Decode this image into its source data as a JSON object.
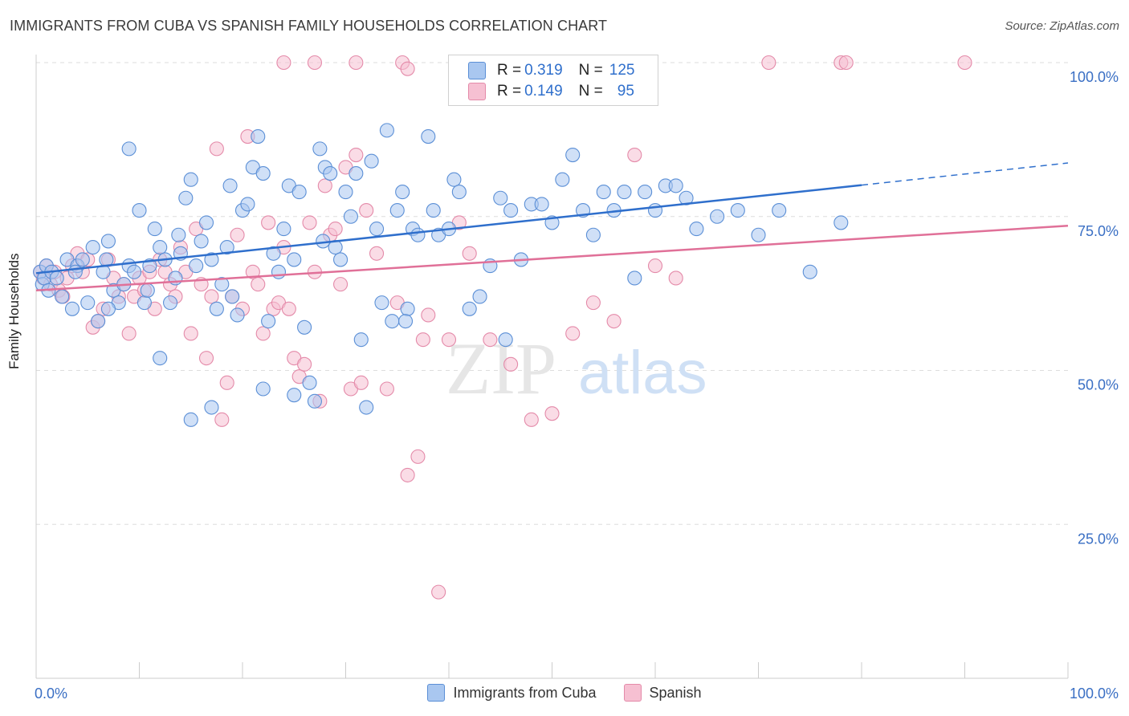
{
  "title": "IMMIGRANTS FROM CUBA VS SPANISH FAMILY HOUSEHOLDS CORRELATION CHART",
  "source": "Source: ZipAtlas.com",
  "watermark": {
    "part1": "ZIP",
    "part2": "atlas"
  },
  "colors": {
    "blue_fill": "#a9c7f0",
    "blue_stroke": "#5b8fd6",
    "blue_line": "#2f6fcc",
    "pink_fill": "#f6c0d2",
    "pink_stroke": "#e48aa9",
    "pink_line": "#e07098",
    "axis_label": "#3a6fc4",
    "grid": "#dddddd"
  },
  "stats_legend": [
    {
      "r_label": "R = ",
      "r_value": "0.319",
      "n_label": "N = ",
      "n_value": "125"
    },
    {
      "r_label": "R = ",
      "r_value": "0.149",
      "n_label": "N = ",
      "n_value": "95"
    }
  ],
  "bottom_legend": [
    "Immigrants from Cuba",
    "Spanish"
  ],
  "chart_data": {
    "type": "scatter",
    "title": "IMMIGRANTS FROM CUBA VS SPANISH FAMILY HOUSEHOLDS CORRELATION CHART",
    "xlabel": "",
    "ylabel": "Family Households",
    "xlim": [
      0,
      100
    ],
    "ylim": [
      0,
      100
    ],
    "x_tick_labels": [
      "0.0%",
      "100.0%"
    ],
    "y_tick_labels": [
      {
        "value": 25,
        "label": "25.0%"
      },
      {
        "value": 50,
        "label": "50.0%"
      },
      {
        "value": 75,
        "label": "75.0%"
      },
      {
        "value": 100,
        "label": "100.0%"
      }
    ],
    "series": [
      {
        "name": "Immigrants from Cuba",
        "R": 0.319,
        "N": 125,
        "trend": {
          "x0": 0,
          "y0": 65.8,
          "x1": 80,
          "y1": 80.1,
          "dash_to_x": 100,
          "dash_to_y": 83.7
        },
        "points": [
          [
            0.4,
            66
          ],
          [
            0.6,
            64
          ],
          [
            0.8,
            65
          ],
          [
            1,
            67
          ],
          [
            1.2,
            63
          ],
          [
            1.5,
            66
          ],
          [
            2,
            65
          ],
          [
            2.5,
            62
          ],
          [
            3,
            68
          ],
          [
            3.5,
            60
          ],
          [
            4,
            67
          ],
          [
            4.5,
            68
          ],
          [
            5,
            61
          ],
          [
            5.5,
            70
          ],
          [
            6,
            58
          ],
          [
            6.5,
            66
          ],
          [
            7,
            71
          ],
          [
            7.5,
            63
          ],
          [
            8,
            61
          ],
          [
            8.5,
            64
          ],
          [
            9,
            67
          ],
          [
            9.5,
            66
          ],
          [
            10,
            76
          ],
          [
            10.5,
            61
          ],
          [
            11,
            67
          ],
          [
            11.5,
            73
          ],
          [
            12,
            70
          ],
          [
            12.5,
            68
          ],
          [
            13,
            61
          ],
          [
            13.5,
            65
          ],
          [
            14,
            69
          ],
          [
            14.5,
            78
          ],
          [
            15,
            81
          ],
          [
            15.5,
            67
          ],
          [
            16,
            71
          ],
          [
            16.5,
            74
          ],
          [
            17,
            68
          ],
          [
            17.5,
            60
          ],
          [
            18,
            64
          ],
          [
            18.5,
            70
          ],
          [
            19,
            62
          ],
          [
            19.5,
            59
          ],
          [
            20,
            76
          ],
          [
            20.5,
            77
          ],
          [
            21,
            83
          ],
          [
            21.5,
            88
          ],
          [
            22,
            82
          ],
          [
            22.5,
            58
          ],
          [
            23,
            69
          ],
          [
            23.5,
            66
          ],
          [
            24,
            73
          ],
          [
            24.5,
            80
          ],
          [
            25,
            68
          ],
          [
            25.5,
            79
          ],
          [
            26,
            57
          ],
          [
            26.5,
            48
          ],
          [
            27,
            45
          ],
          [
            27.5,
            86
          ],
          [
            28,
            83
          ],
          [
            28.5,
            82
          ],
          [
            29,
            70
          ],
          [
            29.5,
            68
          ],
          [
            30,
            79
          ],
          [
            30.5,
            75
          ],
          [
            31,
            82
          ],
          [
            31.5,
            55
          ],
          [
            32,
            44
          ],
          [
            32.5,
            84
          ],
          [
            33,
            73
          ],
          [
            33.5,
            61
          ],
          [
            34,
            89
          ],
          [
            34.5,
            58
          ],
          [
            35,
            76
          ],
          [
            35.5,
            79
          ],
          [
            36,
            60
          ],
          [
            36.5,
            73
          ],
          [
            37,
            72
          ],
          [
            38,
            88
          ],
          [
            38.5,
            76
          ],
          [
            39,
            72
          ],
          [
            40,
            73
          ],
          [
            40.5,
            81
          ],
          [
            41,
            79
          ],
          [
            42,
            60
          ],
          [
            43,
            62
          ],
          [
            44,
            67
          ],
          [
            45,
            78
          ],
          [
            45.5,
            55
          ],
          [
            46,
            76
          ],
          [
            47,
            68
          ],
          [
            48,
            77
          ],
          [
            49,
            77
          ],
          [
            50,
            74
          ],
          [
            51,
            81
          ],
          [
            52,
            85
          ],
          [
            53,
            76
          ],
          [
            54,
            72
          ],
          [
            55,
            79
          ],
          [
            56,
            76
          ],
          [
            57,
            79
          ],
          [
            58,
            65
          ],
          [
            59,
            79
          ],
          [
            60,
            76
          ],
          [
            61,
            80
          ],
          [
            62,
            80
          ],
          [
            63,
            78
          ],
          [
            64,
            73
          ],
          [
            66,
            75
          ],
          [
            68,
            76
          ],
          [
            70,
            72
          ],
          [
            72,
            76
          ],
          [
            75,
            66
          ],
          [
            78,
            74
          ],
          [
            9,
            86
          ],
          [
            7,
            60
          ],
          [
            12,
            52
          ],
          [
            15,
            42
          ],
          [
            17,
            44
          ],
          [
            22,
            47
          ],
          [
            25,
            46
          ],
          [
            3.8,
            66
          ],
          [
            6.8,
            68
          ],
          [
            10.8,
            63
          ],
          [
            13.8,
            72
          ],
          [
            18.8,
            80
          ],
          [
            27.8,
            71
          ],
          [
            35.8,
            58
          ]
        ]
      },
      {
        "name": "Spanish",
        "R": 0.149,
        "N": 95,
        "trend": {
          "x0": 0,
          "y0": 63.0,
          "x1": 100,
          "y1": 73.5
        },
        "points": [
          [
            0.4,
            66
          ],
          [
            0.7,
            65
          ],
          [
            1,
            67
          ],
          [
            1.4,
            64
          ],
          [
            1.8,
            66
          ],
          [
            2.2,
            63
          ],
          [
            2.6,
            62
          ],
          [
            3,
            65
          ],
          [
            3.5,
            67
          ],
          [
            4,
            69
          ],
          [
            4.5,
            66
          ],
          [
            5,
            68
          ],
          [
            5.5,
            57
          ],
          [
            6,
            58
          ],
          [
            6.5,
            60
          ],
          [
            7,
            68
          ],
          [
            7.5,
            65
          ],
          [
            8,
            62
          ],
          [
            8.5,
            64
          ],
          [
            9,
            56
          ],
          [
            9.5,
            62
          ],
          [
            10,
            65
          ],
          [
            10.5,
            63
          ],
          [
            11,
            66
          ],
          [
            11.5,
            60
          ],
          [
            12,
            68
          ],
          [
            12.5,
            66
          ],
          [
            13,
            64
          ],
          [
            13.5,
            62
          ],
          [
            14,
            70
          ],
          [
            14.5,
            66
          ],
          [
            15,
            56
          ],
          [
            15.5,
            73
          ],
          [
            16,
            64
          ],
          [
            16.5,
            52
          ],
          [
            17,
            62
          ],
          [
            17.5,
            86
          ],
          [
            18,
            42
          ],
          [
            18.5,
            48
          ],
          [
            19,
            62
          ],
          [
            19.5,
            72
          ],
          [
            20,
            60
          ],
          [
            20.5,
            88
          ],
          [
            21,
            66
          ],
          [
            21.5,
            64
          ],
          [
            22,
            56
          ],
          [
            22.5,
            74
          ],
          [
            23,
            60
          ],
          [
            23.5,
            61
          ],
          [
            24,
            70
          ],
          [
            24.5,
            60
          ],
          [
            25,
            52
          ],
          [
            25.5,
            49
          ],
          [
            26,
            51
          ],
          [
            26.5,
            74
          ],
          [
            27,
            66
          ],
          [
            27.5,
            45
          ],
          [
            28,
            80
          ],
          [
            28.5,
            72
          ],
          [
            29,
            73
          ],
          [
            29.5,
            64
          ],
          [
            30,
            83
          ],
          [
            30.5,
            47
          ],
          [
            31,
            85
          ],
          [
            31.5,
            48
          ],
          [
            32,
            76
          ],
          [
            33,
            69
          ],
          [
            34,
            47
          ],
          [
            35,
            61
          ],
          [
            36,
            33
          ],
          [
            37,
            36
          ],
          [
            37.5,
            55
          ],
          [
            38,
            59
          ],
          [
            39,
            14
          ],
          [
            40,
            55
          ],
          [
            41,
            74
          ],
          [
            42,
            69
          ],
          [
            44,
            55
          ],
          [
            46,
            51
          ],
          [
            48,
            42
          ],
          [
            50,
            43
          ],
          [
            52,
            56
          ],
          [
            54,
            61
          ],
          [
            56,
            58
          ],
          [
            58,
            85
          ],
          [
            60,
            67
          ],
          [
            62,
            65
          ],
          [
            24,
            100
          ],
          [
            27,
            100
          ],
          [
            31,
            100
          ],
          [
            35.5,
            100
          ],
          [
            36,
            99
          ],
          [
            71,
            100
          ],
          [
            78,
            100
          ],
          [
            78.5,
            100
          ],
          [
            90,
            100
          ]
        ]
      }
    ]
  }
}
